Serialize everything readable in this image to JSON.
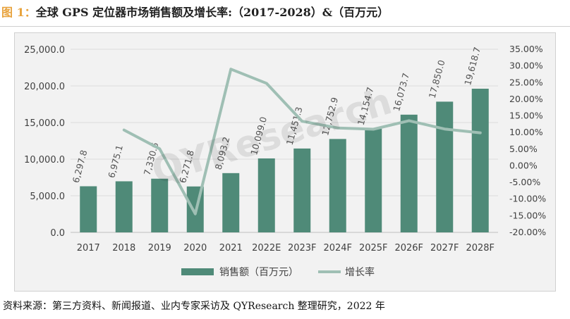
{
  "title": {
    "figure_label": "图 1：",
    "text": "全球 GPS 定位器市场销售额及增长率:（2017-2028）&（百万元）"
  },
  "watermark": "QYResearch",
  "source": "资料来源：第三方资料、新闻报道、业内专家采访及 QYResearch 整理研究，2022 年",
  "colors": {
    "bar": "#4f8a78",
    "line": "#9fbfb4",
    "panel": "#f2f2f2",
    "figure_label": "#e8a33d"
  },
  "chart_data": {
    "type": "bar",
    "categories": [
      "2017",
      "2018",
      "2019",
      "2020",
      "2021",
      "2022E",
      "2023F",
      "2024F",
      "2025F",
      "2026F",
      "2027F",
      "2028F"
    ],
    "series": [
      {
        "name": "销售额（百万元）",
        "type": "bar",
        "axis": "left",
        "values": [
          6297.8,
          6975.1,
          7330.6,
          6271.8,
          8093.2,
          10099.0,
          11451.3,
          12752.9,
          14154.7,
          16073.7,
          17850.0,
          19618.7
        ],
        "labels": [
          "6,297.8",
          "6,975.1",
          "7,330.6",
          "6,271.8",
          "8,093.2",
          "10,099.0",
          "11,451.3",
          "12,752.9",
          "14,154.7",
          "16,073.7",
          "17,850.0",
          "19,618.7"
        ]
      },
      {
        "name": "增长率",
        "type": "line",
        "axis": "right",
        "values": [
          null,
          10.75,
          5.1,
          -14.44,
          29.04,
          24.78,
          13.39,
          11.37,
          10.99,
          13.56,
          11.05,
          9.91
        ]
      }
    ],
    "y_left": {
      "min": 0,
      "max": 25000,
      "ticks": [
        {
          "v": 0,
          "label": "0.0"
        },
        {
          "v": 5000,
          "label": "5,000.0"
        },
        {
          "v": 10000,
          "label": "10,000.0"
        },
        {
          "v": 15000,
          "label": "15,000.0"
        },
        {
          "v": 20000,
          "label": "20,000.0"
        },
        {
          "v": 25000,
          "label": "25,000.0"
        }
      ]
    },
    "y_right": {
      "min": -20,
      "max": 35,
      "ticks": [
        {
          "v": 35,
          "label": "35.00%"
        },
        {
          "v": 30,
          "label": "30.00%"
        },
        {
          "v": 25,
          "label": "25.00%"
        },
        {
          "v": 20,
          "label": "20.00%"
        },
        {
          "v": 15,
          "label": "15.00%"
        },
        {
          "v": 10,
          "label": "10.00%"
        },
        {
          "v": 5,
          "label": "5.00%"
        },
        {
          "v": 0,
          "label": "0.00%"
        },
        {
          "v": -5,
          "label": "-5.00%"
        },
        {
          "v": -10,
          "label": "-10.00%"
        },
        {
          "v": -15,
          "label": "-15.00%"
        },
        {
          "v": -20,
          "label": "-20.00%"
        }
      ]
    },
    "legend": {
      "placement": "bottom",
      "items": [
        "销售额（百万元）",
        "增长率"
      ]
    },
    "grid": true
  }
}
